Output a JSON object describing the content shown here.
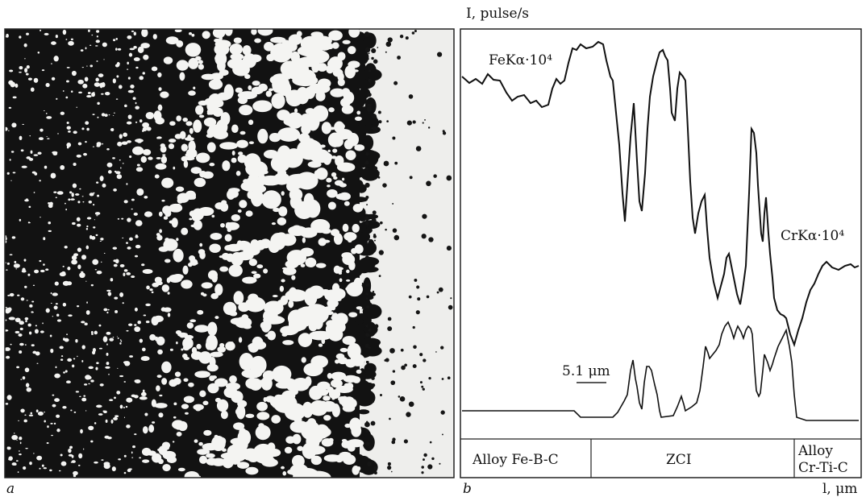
{
  "panel_a": {
    "label": "a"
  },
  "panel_b": {
    "label": "b",
    "y_axis_label": "I, pulse/s",
    "x_axis_label": "l, μm",
    "curve_labels": [
      "FeKα·10⁴",
      "CrKα·10⁴"
    ],
    "scale_bar": "5.1 μm",
    "zones": [
      "Alloy Fe-B-C",
      "ZCI",
      "Alloy",
      "Cr-Ti-C"
    ]
  }
}
